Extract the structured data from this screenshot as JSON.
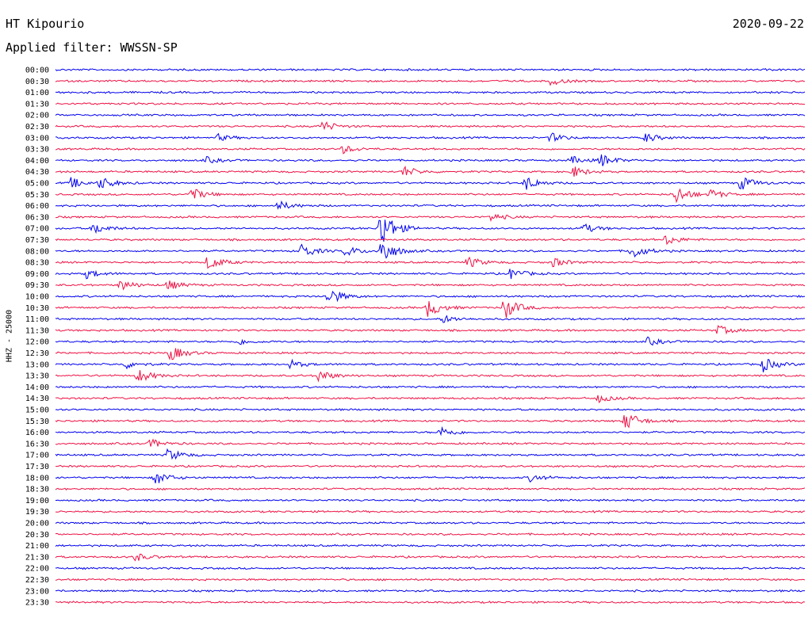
{
  "header": {
    "station": "HT Kipourio",
    "date": "2020-09-22",
    "filter": "Applied filter: WWSSN-SP"
  },
  "colors": {
    "odd": "#0000ee",
    "even": "#ee1144"
  },
  "chart_data": {
    "type": "line",
    "title": "HT Kipourio",
    "ylabel": "HHZ - 25000",
    "grid": false,
    "rows": [
      "00:00",
      "00:30",
      "01:00",
      "01:30",
      "02:00",
      "02:30",
      "03:00",
      "03:30",
      "04:00",
      "04:30",
      "05:00",
      "05:30",
      "06:00",
      "06:30",
      "07:00",
      "07:30",
      "08:00",
      "08:30",
      "09:00",
      "09:30",
      "10:00",
      "10:30",
      "11:00",
      "11:30",
      "12:00",
      "12:30",
      "13:00",
      "13:30",
      "14:00",
      "14:30",
      "15:00",
      "15:30",
      "16:00",
      "16:30",
      "17:00",
      "17:30",
      "18:00",
      "18:30",
      "19:00",
      "19:30",
      "20:00",
      "20:30",
      "21:00",
      "21:30",
      "22:00",
      "22:30",
      "23:00",
      "23:30"
    ],
    "x_units": "minutes within each 30-minute row (0-30)",
    "events": [
      {
        "row": 1,
        "t": 19.8,
        "amp": 5
      },
      {
        "row": 5,
        "t": 10.6,
        "amp": 8
      },
      {
        "row": 6,
        "t": 6.5,
        "amp": 4
      },
      {
        "row": 6,
        "t": 19.8,
        "amp": 6
      },
      {
        "row": 6,
        "t": 23.6,
        "amp": 6
      },
      {
        "row": 7,
        "t": 11.5,
        "amp": 5
      },
      {
        "row": 8,
        "t": 6.0,
        "amp": 4
      },
      {
        "row": 8,
        "t": 20.6,
        "amp": 5
      },
      {
        "row": 8,
        "t": 21.8,
        "amp": 8
      },
      {
        "row": 9,
        "t": 13.9,
        "amp": 7
      },
      {
        "row": 9,
        "t": 20.7,
        "amp": 7
      },
      {
        "row": 10,
        "t": 0.6,
        "amp": 7
      },
      {
        "row": 10,
        "t": 1.8,
        "amp": 8
      },
      {
        "row": 10,
        "t": 18.8,
        "amp": 9
      },
      {
        "row": 10,
        "t": 27.4,
        "amp": 9
      },
      {
        "row": 11,
        "t": 5.4,
        "amp": 9
      },
      {
        "row": 11,
        "t": 24.8,
        "amp": 12
      },
      {
        "row": 11,
        "t": 26.2,
        "amp": 6
      },
      {
        "row": 12,
        "t": 8.9,
        "amp": 6
      },
      {
        "row": 13,
        "t": 17.4,
        "amp": 5
      },
      {
        "row": 14,
        "t": 1.5,
        "amp": 8
      },
      {
        "row": 14,
        "t": 13.0,
        "amp": 28
      },
      {
        "row": 14,
        "t": 21.1,
        "amp": 6
      },
      {
        "row": 15,
        "t": 24.4,
        "amp": 7
      },
      {
        "row": 16,
        "t": 9.8,
        "amp": 10
      },
      {
        "row": 16,
        "t": 11.6,
        "amp": 7
      },
      {
        "row": 16,
        "t": 13.0,
        "amp": 18
      },
      {
        "row": 16,
        "t": 23.0,
        "amp": 11
      },
      {
        "row": 17,
        "t": 6.1,
        "amp": 10
      },
      {
        "row": 17,
        "t": 16.5,
        "amp": 7
      },
      {
        "row": 17,
        "t": 19.9,
        "amp": 6
      },
      {
        "row": 18,
        "t": 1.2,
        "amp": 6
      },
      {
        "row": 18,
        "t": 18.2,
        "amp": 7
      },
      {
        "row": 19,
        "t": 2.6,
        "amp": 7
      },
      {
        "row": 19,
        "t": 4.5,
        "amp": 6
      },
      {
        "row": 20,
        "t": 10.9,
        "amp": 12
      },
      {
        "row": 21,
        "t": 14.9,
        "amp": 12
      },
      {
        "row": 21,
        "t": 17.9,
        "amp": 16
      },
      {
        "row": 22,
        "t": 15.5,
        "amp": 5
      },
      {
        "row": 23,
        "t": 26.5,
        "amp": 6
      },
      {
        "row": 24,
        "t": 7.3,
        "amp": 4
      },
      {
        "row": 24,
        "t": 23.7,
        "amp": 5
      },
      {
        "row": 25,
        "t": 4.6,
        "amp": 10
      },
      {
        "row": 26,
        "t": 2.8,
        "amp": 5
      },
      {
        "row": 26,
        "t": 9.4,
        "amp": 5
      },
      {
        "row": 26,
        "t": 28.3,
        "amp": 9
      },
      {
        "row": 27,
        "t": 3.3,
        "amp": 9
      },
      {
        "row": 27,
        "t": 10.5,
        "amp": 8
      },
      {
        "row": 29,
        "t": 21.7,
        "amp": 5
      },
      {
        "row": 31,
        "t": 22.8,
        "amp": 13
      },
      {
        "row": 32,
        "t": 15.4,
        "amp": 7
      },
      {
        "row": 33,
        "t": 3.8,
        "amp": 6
      },
      {
        "row": 34,
        "t": 4.5,
        "amp": 8
      },
      {
        "row": 36,
        "t": 4.0,
        "amp": 9
      },
      {
        "row": 36,
        "t": 19.0,
        "amp": 5
      },
      {
        "row": 43,
        "t": 3.2,
        "amp": 5
      }
    ]
  }
}
